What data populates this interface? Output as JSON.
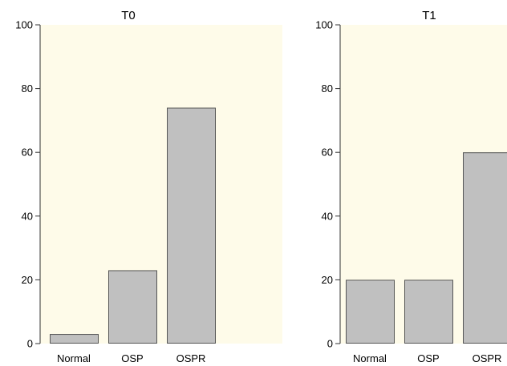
{
  "chart_data": [
    {
      "type": "bar",
      "title": "T0",
      "categories": [
        "Normal",
        "OSP",
        "OSPR"
      ],
      "values": [
        3,
        23,
        74
      ],
      "ylim": [
        0,
        100
      ],
      "yticks": [
        "0",
        "20",
        "40",
        "60",
        "80",
        "100"
      ],
      "xlabel": "",
      "ylabel": ""
    },
    {
      "type": "bar",
      "title": "T1",
      "categories": [
        "Normal",
        "OSP",
        "OSPR"
      ],
      "values": [
        20,
        20,
        60
      ],
      "ylim": [
        0,
        100
      ],
      "yticks": [
        "0",
        "20",
        "40",
        "60",
        "80",
        "100"
      ],
      "xlabel": "",
      "ylabel": ""
    }
  ],
  "colors": {
    "plot_background": "#fefbe9",
    "bar_fill": "#c0c0c0",
    "bar_stroke": "#555555",
    "axis": "#333333"
  }
}
